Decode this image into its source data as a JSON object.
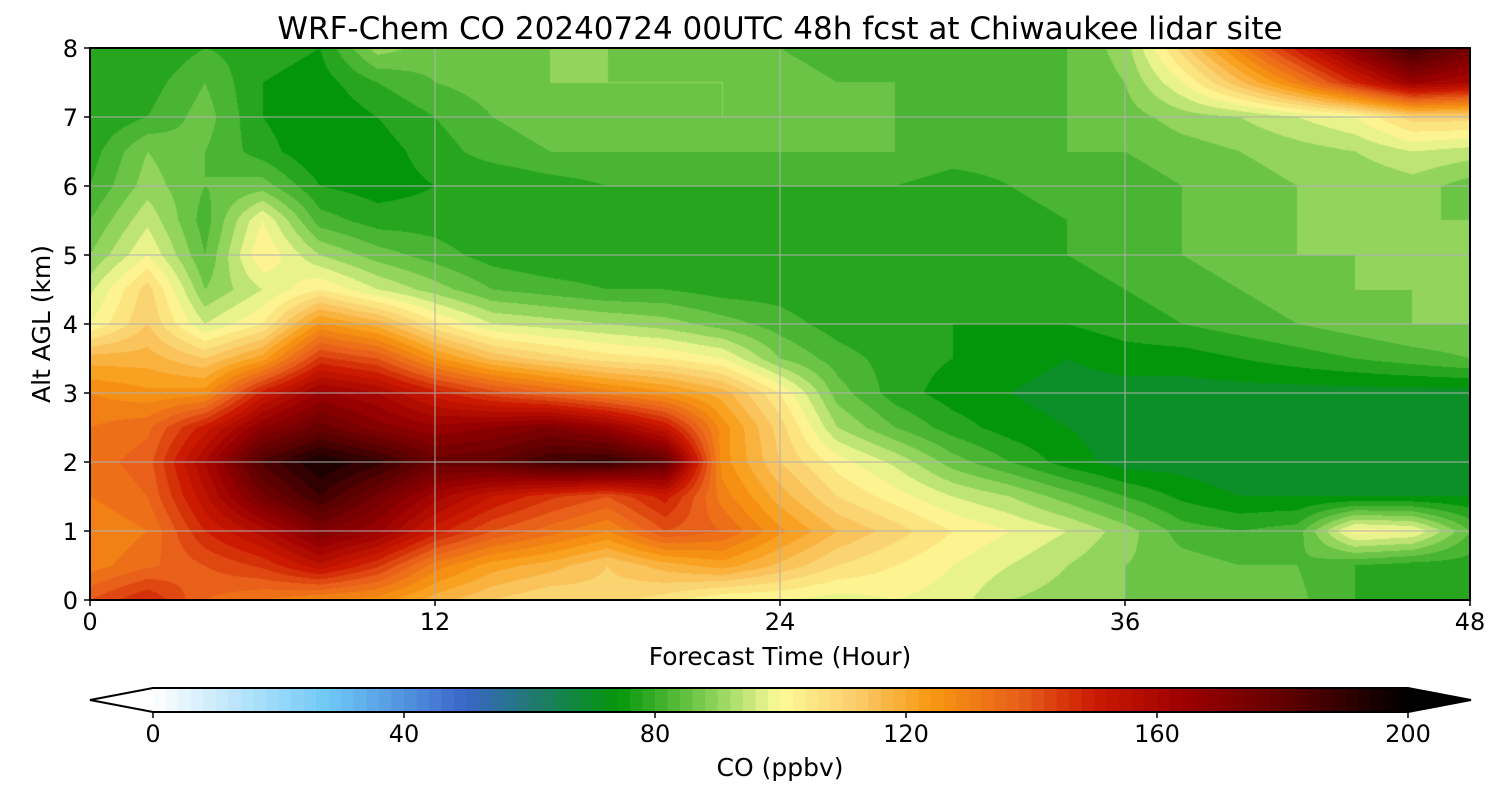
{
  "chart_data": {
    "type": "heatmap",
    "subtype": "filled-contour",
    "title": "WRF-Chem CO  20240724 00UTC 48h fcst at Chiwaukee lidar site",
    "xlabel": "Forecast Time (Hour)",
    "ylabel": "Alt AGL (km)",
    "xlim": [
      0,
      48
    ],
    "ylim": [
      0,
      8
    ],
    "xticks": [
      0,
      12,
      24,
      36,
      48
    ],
    "xtick_labels": [
      "0",
      "12",
      "24",
      "36",
      "48"
    ],
    "yticks": [
      0,
      1,
      2,
      3,
      4,
      5,
      6,
      7,
      8
    ],
    "ytick_labels": [
      "0",
      "1",
      "2",
      "3",
      "4",
      "5",
      "6",
      "7",
      "8"
    ],
    "grid": true,
    "colorbar": {
      "label": "CO  (ppbv)",
      "range": [
        0,
        200
      ],
      "ticks": [
        0,
        40,
        80,
        120,
        160,
        200
      ],
      "tick_labels": [
        "0",
        "40",
        "80",
        "120",
        "160",
        "200"
      ],
      "extend": "both",
      "colormap_stops": [
        {
          "value": 0,
          "color": "#ffffff"
        },
        {
          "value": 28,
          "color": "#6ec8f7"
        },
        {
          "value": 50,
          "color": "#3a66c8"
        },
        {
          "value": 62,
          "color": "#1b7d64"
        },
        {
          "value": 74,
          "color": "#04960a"
        },
        {
          "value": 88,
          "color": "#7dcc50"
        },
        {
          "value": 100,
          "color": "#fdfb98"
        },
        {
          "value": 112,
          "color": "#fbcc6a"
        },
        {
          "value": 124,
          "color": "#f89812"
        },
        {
          "value": 138,
          "color": "#e8601a"
        },
        {
          "value": 150,
          "color": "#cc1a00"
        },
        {
          "value": 165,
          "color": "#9a0000"
        },
        {
          "value": 182,
          "color": "#5a0000"
        },
        {
          "value": 200,
          "color": "#000000"
        }
      ]
    },
    "x": [
      0,
      2,
      4,
      6,
      8,
      10,
      12,
      14,
      16,
      18,
      20,
      22,
      24,
      26,
      28,
      30,
      32,
      34,
      36,
      38,
      40,
      42,
      44,
      46,
      48
    ],
    "y": [
      0,
      0.5,
      1,
      1.5,
      2,
      2.5,
      3,
      3.5,
      4,
      4.5,
      5,
      5.5,
      6,
      6.5,
      7,
      7.5,
      8
    ],
    "z_ppbv": [
      [
        140,
        148,
        136,
        132,
        128,
        126,
        118,
        112,
        108,
        110,
        106,
        100,
        100,
        98,
        100,
        98,
        92,
        90,
        88,
        86,
        84,
        85,
        80,
        78,
        76
      ],
      [
        130,
        135,
        140,
        145,
        155,
        145,
        130,
        122,
        118,
        112,
        118,
        122,
        115,
        108,
        104,
        100,
        96,
        92,
        88,
        86,
        84,
        84,
        80,
        78,
        78
      ],
      [
        128,
        132,
        148,
        158,
        172,
        165,
        150,
        140,
        134,
        128,
        140,
        136,
        125,
        116,
        110,
        104,
        100,
        96,
        90,
        82,
        80,
        82,
        102,
        100,
        84
      ],
      [
        132,
        136,
        155,
        175,
        188,
        175,
        162,
        152,
        145,
        140,
        150,
        130,
        118,
        108,
        102,
        96,
        92,
        86,
        80,
        75,
        72,
        72,
        72,
        72,
        72
      ],
      [
        134,
        138,
        160,
        185,
        196,
        190,
        178,
        180,
        188,
        190,
        180,
        126,
        112,
        102,
        95,
        86,
        80,
        74,
        70,
        70,
        68,
        68,
        68,
        68,
        68
      ],
      [
        132,
        135,
        150,
        168,
        178,
        170,
        165,
        168,
        172,
        165,
        152,
        126,
        110,
        92,
        84,
        78,
        74,
        72,
        70,
        70,
        69,
        69,
        70,
        69,
        70
      ],
      [
        128,
        125,
        126,
        150,
        165,
        160,
        150,
        142,
        136,
        130,
        125,
        118,
        104,
        86,
        78,
        74,
        72,
        70,
        70,
        70,
        70,
        70,
        70,
        70,
        70
      ],
      [
        118,
        118,
        112,
        122,
        145,
        140,
        125,
        115,
        110,
        106,
        104,
        100,
        88,
        82,
        78,
        76,
        74,
        72,
        74,
        74,
        76,
        78,
        80,
        82,
        84
      ],
      [
        100,
        112,
        96,
        104,
        125,
        118,
        105,
        96,
        94,
        92,
        90,
        86,
        82,
        78,
        76,
        76,
        76,
        76,
        78,
        80,
        82,
        84,
        86,
        88,
        88
      ],
      [
        95,
        110,
        88,
        96,
        104,
        96,
        90,
        84,
        82,
        80,
        80,
        78,
        78,
        76,
        76,
        76,
        76,
        78,
        80,
        82,
        84,
        86,
        88,
        88,
        88
      ],
      [
        88,
        100,
        84,
        104,
        92,
        86,
        82,
        78,
        76,
        76,
        76,
        76,
        76,
        76,
        76,
        76,
        78,
        80,
        82,
        84,
        86,
        88,
        88,
        88,
        88
      ],
      [
        84,
        95,
        82,
        100,
        82,
        78,
        78,
        76,
        76,
        76,
        76,
        76,
        76,
        76,
        76,
        76,
        78,
        80,
        82,
        84,
        86,
        88,
        88,
        88,
        88
      ],
      [
        80,
        90,
        84,
        86,
        76,
        74,
        76,
        76,
        78,
        80,
        80,
        80,
        80,
        80,
        80,
        78,
        80,
        82,
        82,
        84,
        86,
        88,
        88,
        90,
        86
      ],
      [
        78,
        88,
        84,
        78,
        72,
        74,
        78,
        82,
        84,
        84,
        84,
        84,
        84,
        84,
        84,
        82,
        82,
        84,
        84,
        86,
        88,
        90,
        92,
        96,
        94
      ],
      [
        76,
        80,
        86,
        76,
        72,
        76,
        80,
        84,
        86,
        86,
        86,
        88,
        86,
        84,
        84,
        82,
        82,
        84,
        86,
        90,
        92,
        96,
        100,
        110,
        110
      ],
      [
        76,
        78,
        84,
        76,
        74,
        80,
        84,
        86,
        88,
        88,
        88,
        88,
        86,
        84,
        84,
        82,
        82,
        84,
        88,
        100,
        115,
        130,
        148,
        165,
        160
      ],
      [
        76,
        76,
        80,
        78,
        76,
        90,
        86,
        86,
        88,
        88,
        86,
        86,
        84,
        82,
        82,
        82,
        82,
        84,
        90,
        110,
        130,
        150,
        170,
        188,
        175
      ]
    ]
  }
}
